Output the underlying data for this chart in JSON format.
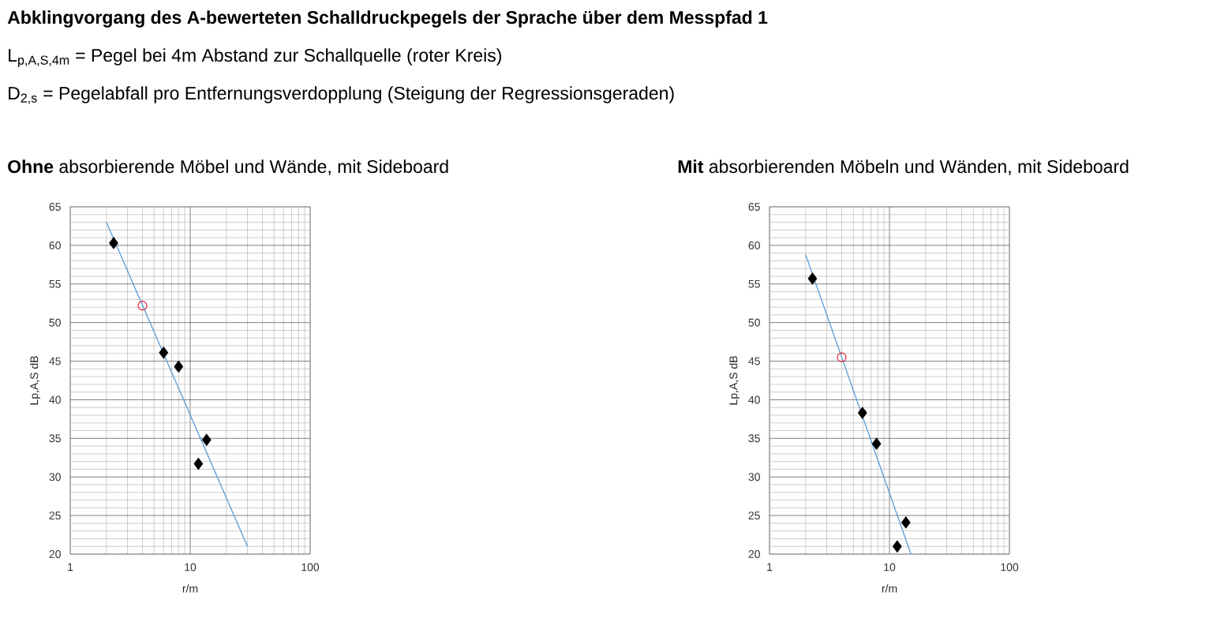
{
  "chart_data": [
    {
      "type": "scatter",
      "title": "**Ohne** absorbierende Möbel und Wände, mit Sideboard",
      "annotations": [
        "Abklingvorgang des A-bewerteten Schalldruckpegels der Sprache über dem Messpfad 1",
        "L$_{p,A,S,4m}$ = Pegel bei 4m Abstand zur Schallquelle (roter Kreis)",
        "D$_{2,s}$ = Pegelabfall pro Entfernungsverdopplung (Steigung der Regressionsgeraden)"
      ],
      "xlabel": "r/m",
      "ylabel": "Lp,A,S  dB",
      "log": "x",
      "grid": true,
      "xlim": [
        1,
        100
      ],
      "xticks": [
        1,
        10,
        100
      ],
      "ylim": [
        20,
        65
      ],
      "yticks": [
        20,
        25,
        30,
        35,
        40,
        45,
        50,
        55,
        60,
        65
      ],
      "series": [
        {
          "type": "line",
          "marker": "none",
          "color": "#5b9bd5",
          "x": [
            2,
            30
          ],
          "values": [
            63,
            21
          ]
        },
        {
          "marker": "diamond",
          "color": "#000000",
          "x": [
            2.3,
            6,
            8,
            13.7,
            11.7
          ],
          "values": [
            60.3,
            46.1,
            44.3,
            34.8,
            31.7
          ]
        },
        {
          "marker": "circle",
          "color": "#e8112d",
          "x": [
            4
          ],
          "values": [
            52.2
          ]
        }
      ]
    },
    {
      "type": "scatter",
      "title": "**Mit** absorbierenden Möbeln und Wänden, mit Sideboard",
      "xlabel": "r/m",
      "ylabel": "Lp,A,S  dB",
      "log": "x",
      "grid": true,
      "xlim": [
        1,
        100
      ],
      "xticks": [
        1,
        10,
        100
      ],
      "ylim": [
        20,
        65
      ],
      "yticks": [
        20,
        25,
        30,
        35,
        40,
        45,
        50,
        55,
        60,
        65
      ],
      "series": [
        {
          "type": "line",
          "marker": "none",
          "color": "#5b9bd5",
          "x": [
            2,
            15.1
          ],
          "values": [
            58.8,
            20
          ]
        },
        {
          "marker": "diamond",
          "color": "#000000",
          "x": [
            2.28,
            5.95,
            7.8,
            13.7,
            11.6
          ],
          "values": [
            55.7,
            38.3,
            34.3,
            24.1,
            21.0
          ]
        },
        {
          "marker": "circle",
          "color": "#e8112d",
          "x": [
            4
          ],
          "values": [
            45.5
          ]
        }
      ]
    }
  ]
}
